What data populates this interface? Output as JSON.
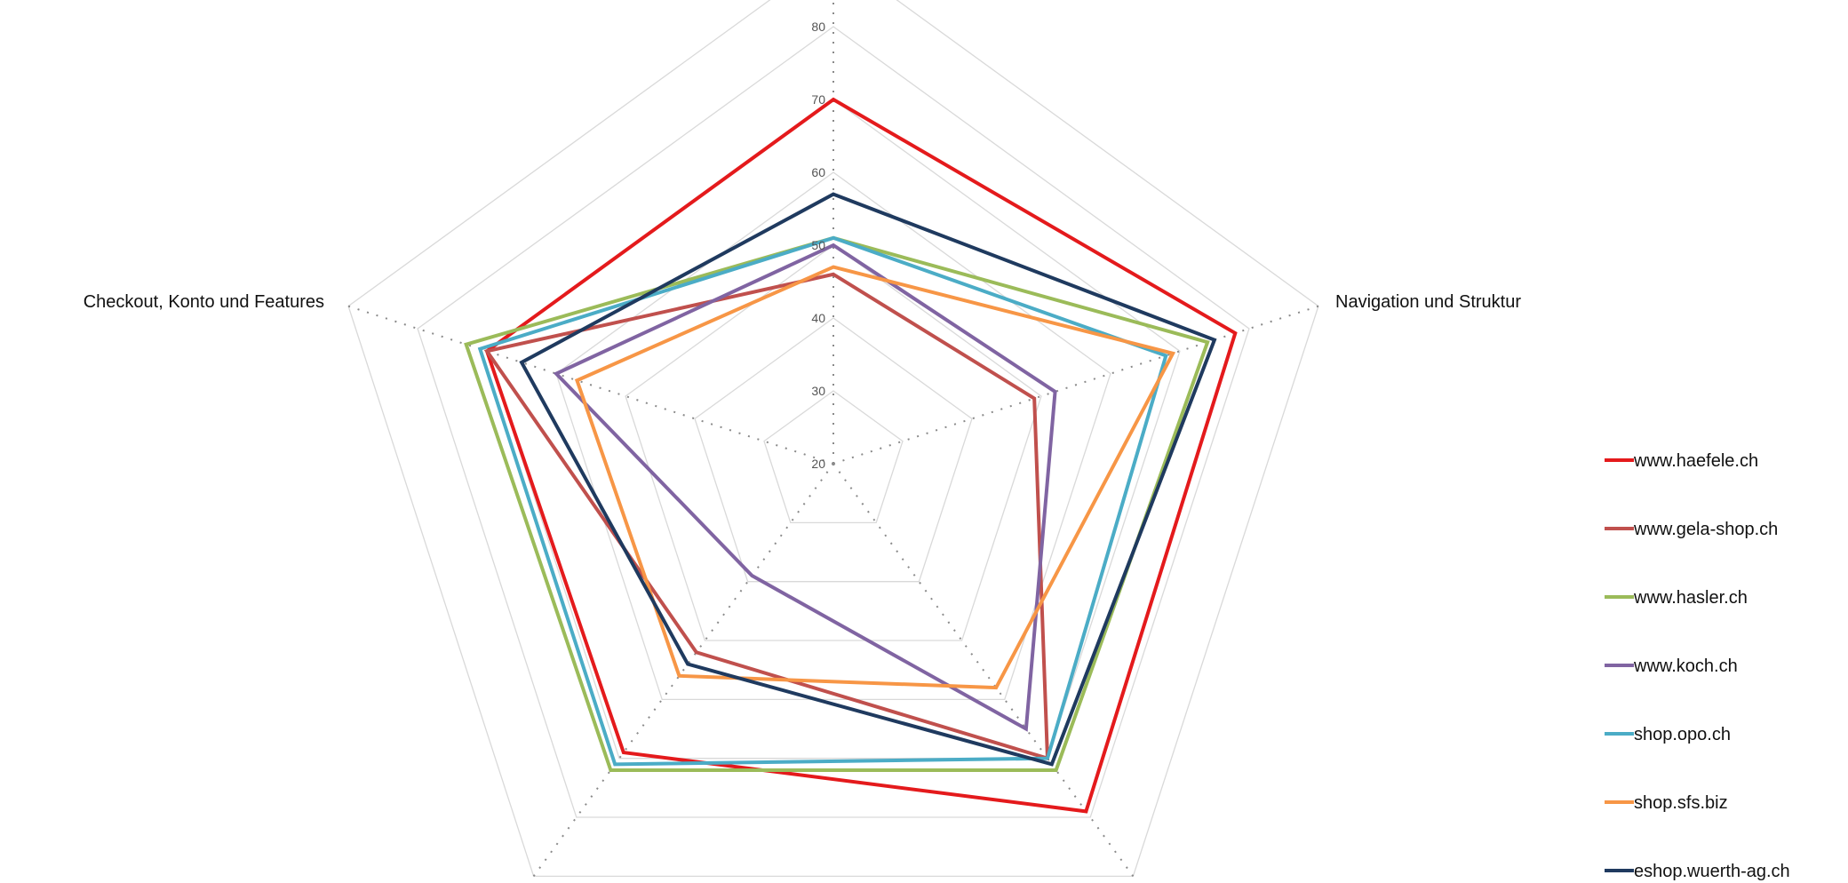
{
  "chart_data": {
    "type": "radar",
    "title": "",
    "axes": [
      "",
      "Navigation und Struktur",
      "",
      "",
      "Checkout, Konto und Features"
    ],
    "rlim": [
      20,
      80
    ],
    "ticks": [
      20,
      30,
      40,
      50,
      60,
      70,
      80
    ],
    "tick_labels": [
      "20",
      "30",
      "40",
      "50",
      "60",
      "70",
      "80"
    ],
    "grid": true,
    "legend_position": "right",
    "series": [
      {
        "name": "www.haefele.ch",
        "color": "#e41a1c",
        "values": [
          70,
          78,
          79,
          69,
          70
        ]
      },
      {
        "name": "www.gela-shop.ch",
        "color": "#c0504d",
        "values": [
          46,
          49,
          70,
          52,
          70
        ]
      },
      {
        "name": "www.hasler.ch",
        "color": "#9bbb59",
        "values": [
          51,
          74,
          72,
          72,
          73
        ]
      },
      {
        "name": "www.koch.ch",
        "color": "#8064a2",
        "values": [
          50,
          52,
          65,
          39,
          60
        ]
      },
      {
        "name": "shop.opo.ch",
        "color": "#4bacc6",
        "values": [
          51,
          68,
          70,
          71,
          71
        ]
      },
      {
        "name": "shop.sfs.biz",
        "color": "#f79646",
        "values": [
          47,
          69,
          58,
          56,
          57
        ]
      },
      {
        "name": "eshop.wuerth-ag.ch",
        "color": "#1f3a5f",
        "values": [
          57,
          75,
          71,
          54,
          65
        ]
      }
    ]
  }
}
